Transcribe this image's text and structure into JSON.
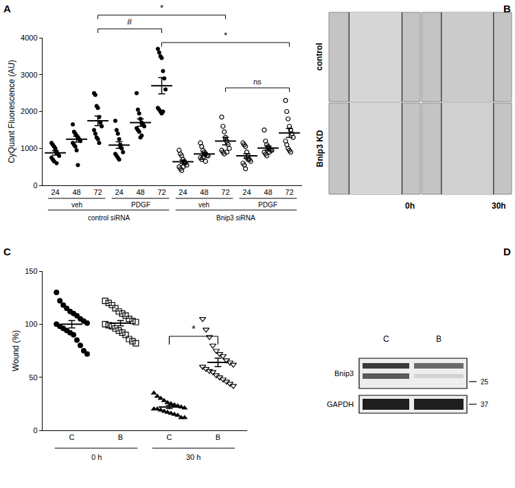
{
  "panel_labels": [
    "A",
    "B",
    "C",
    "D"
  ],
  "chart_data": [
    {
      "type": "scatter",
      "ylabel": "CyQuant Fluorescence (AU)",
      "ylim": [
        0,
        4000
      ],
      "yticks": [
        0,
        1000,
        2000,
        3000,
        4000
      ],
      "series": [
        {
          "name": "24",
          "treatment": "veh",
          "sirna": "control siRNA",
          "marker": "circle",
          "values": [
            1150,
            1100,
            1050,
            950,
            900,
            850,
            800,
            750,
            700,
            650,
            1000,
            600
          ],
          "mean": 880,
          "sem": 60
        },
        {
          "name": "48",
          "treatment": "veh",
          "sirna": "control siRNA",
          "marker": "circle",
          "values": [
            1650,
            1450,
            1400,
            1350,
            1300,
            1250,
            1200,
            1150,
            1100,
            1050,
            950,
            550
          ],
          "mean": 1250,
          "sem": 80
        },
        {
          "name": "72",
          "treatment": "veh",
          "sirna": "control siRNA",
          "marker": "circle",
          "values": [
            2500,
            2450,
            2150,
            2100,
            1850,
            1700,
            1600,
            1500,
            1400,
            1300,
            1250,
            1150
          ],
          "mean": 1750,
          "sem": 130
        },
        {
          "name": "24",
          "treatment": "PDGF",
          "sirna": "control siRNA",
          "marker": "circle",
          "values": [
            1750,
            1500,
            1400,
            1250,
            1100,
            1000,
            900,
            850,
            800,
            750,
            700,
            1050
          ],
          "mean": 1090,
          "sem": 90
        },
        {
          "name": "48",
          "treatment": "PDGF",
          "sirna": "control siRNA",
          "marker": "circle",
          "values": [
            2500,
            2050,
            1950,
            1800,
            1700,
            1650,
            1600,
            1550,
            1500,
            1450,
            1300,
            1350
          ],
          "mean": 1700,
          "sem": 100
        },
        {
          "name": "72",
          "treatment": "PDGF",
          "sirna": "control siRNA",
          "marker": "circle",
          "values": [
            3700,
            3600,
            3500,
            3450,
            3100,
            2900,
            2600,
            2100,
            2050,
            2000,
            1950,
            2000
          ],
          "mean": 2700,
          "sem": 220
        },
        {
          "name": "24",
          "treatment": "veh",
          "sirna": "Bnip3 siRNA",
          "marker": "circle-open",
          "values": [
            950,
            850,
            800,
            700,
            650,
            600,
            550,
            500,
            450,
            400,
            500,
            600
          ],
          "mean": 640,
          "sem": 45
        },
        {
          "name": "48",
          "treatment": "veh",
          "sirna": "Bnip3 siRNA",
          "marker": "circle-open",
          "values": [
            1150,
            1050,
            950,
            900,
            850,
            800,
            800,
            750,
            700,
            750,
            850,
            650
          ],
          "mean": 850,
          "sem": 50
        },
        {
          "name": "72",
          "treatment": "veh",
          "sirna": "Bnip3 siRNA",
          "marker": "circle-open",
          "values": [
            1850,
            1600,
            1450,
            1300,
            1200,
            1100,
            1000,
            950,
            900,
            850,
            1250,
            900
          ],
          "mean": 1200,
          "sem": 100
        },
        {
          "name": "24",
          "treatment": "PDGF",
          "sirna": "Bnip3 siRNA",
          "marker": "circle-open",
          "values": [
            1150,
            1100,
            1050,
            900,
            800,
            700,
            650,
            600,
            550,
            450,
            750,
            700
          ],
          "mean": 800,
          "sem": 60
        },
        {
          "name": "48",
          "treatment": "PDGF",
          "sirna": "Bnip3 siRNA",
          "marker": "circle-open",
          "values": [
            1500,
            1200,
            1100,
            1050,
            1000,
            950,
            950,
            900,
            850,
            800,
            1000,
            900
          ],
          "mean": 1010,
          "sem": 55
        },
        {
          "name": "72",
          "treatment": "PDGF",
          "sirna": "Bnip3 siRNA",
          "marker": "circle-open",
          "values": [
            2300,
            2000,
            1800,
            1600,
            1500,
            1400,
            1300,
            1200,
            1100,
            1000,
            950,
            900
          ],
          "mean": 1420,
          "sem": 120
        }
      ],
      "comparisons": [
        {
          "from": 2,
          "to": 5,
          "label": "#"
        },
        {
          "from": 2,
          "to": 8,
          "label": "*"
        },
        {
          "from": 5,
          "to": 11,
          "label": "*"
        },
        {
          "from": 8,
          "to": 11,
          "label": "ns"
        }
      ]
    },
    {
      "type": "scatter",
      "ylabel": "Wound (%)",
      "ylim": [
        0,
        150
      ],
      "yticks": [
        0,
        50,
        100,
        150
      ],
      "series": [
        {
          "name": "C",
          "group": "0 h",
          "marker": "circle",
          "values": [
            130,
            122,
            118,
            115,
            112,
            110,
            108,
            105,
            103,
            101,
            100,
            98,
            96,
            94,
            92,
            90,
            85,
            80,
            75,
            72
          ],
          "mean": 100,
          "sem": 3.5
        },
        {
          "name": "B",
          "group": "0 h",
          "marker": "square-open",
          "values": [
            122,
            120,
            118,
            115,
            112,
            110,
            108,
            105,
            103,
            102,
            100,
            99,
            98,
            96,
            94,
            92,
            90,
            86,
            84,
            82
          ],
          "mean": 101,
          "sem": 2.5
        },
        {
          "name": "C",
          "group": "30 h",
          "marker": "triangle-up",
          "values": [
            35,
            32,
            30,
            28,
            26,
            25,
            24,
            23,
            22,
            21,
            20,
            20,
            19,
            18,
            17,
            16,
            15,
            14,
            12,
            12
          ],
          "mean": 22,
          "sem": 1.5
        },
        {
          "name": "B",
          "group": "30 h",
          "marker": "triangle-down-open",
          "values": [
            105,
            95,
            88,
            80,
            75,
            72,
            70,
            66,
            64,
            62,
            60,
            58,
            56,
            55,
            52,
            50,
            48,
            46,
            44,
            42
          ],
          "mean": 64,
          "sem": 4
        }
      ],
      "comparisons": [
        {
          "from": 2,
          "to": 3,
          "label": "*"
        }
      ]
    }
  ],
  "image_panel": {
    "rows": [
      "control",
      "Bnip3 KD"
    ],
    "columns": [
      "0h",
      "30h"
    ]
  },
  "blot": {
    "lanes": [
      "C",
      "B"
    ],
    "bands": [
      "Bnip3",
      "GAPDH"
    ],
    "size_markers": [
      25,
      37
    ]
  }
}
